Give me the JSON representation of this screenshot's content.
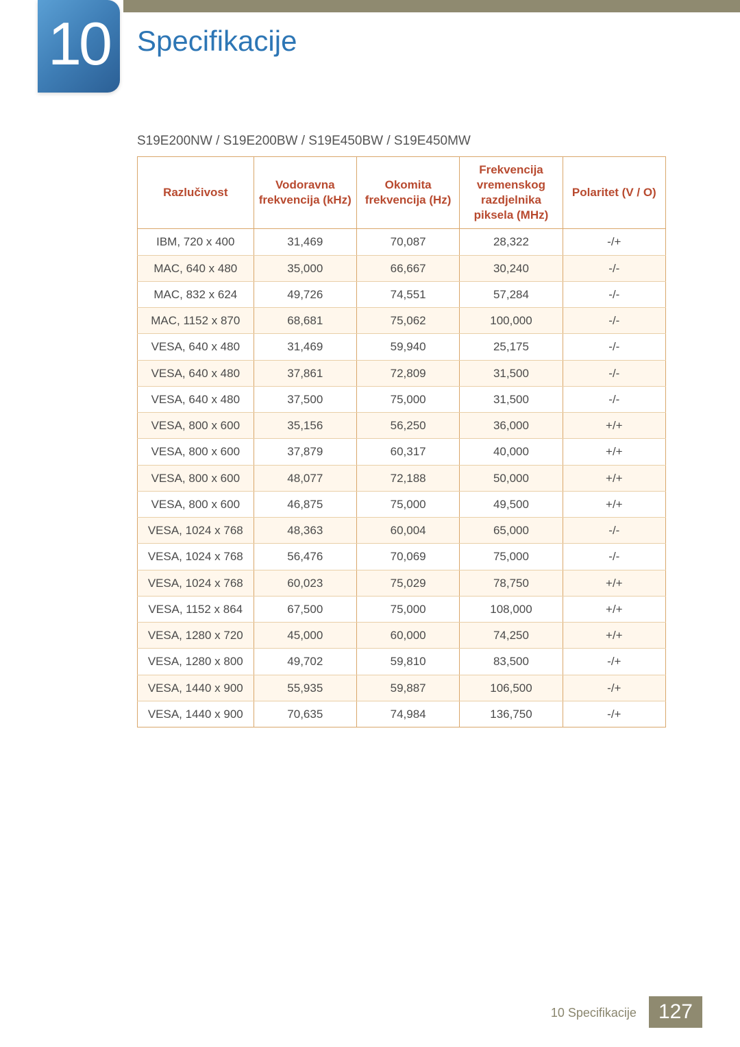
{
  "chapter": {
    "number": "10",
    "title": "Specifikacije"
  },
  "model_line": "S19E200NW / S19E200BW / S19E450BW / S19E450MW",
  "footer": {
    "label": "10 Specifikacije",
    "page": "127"
  },
  "table": {
    "columns": [
      "Razlučivost",
      "Vodoravna frekvencija (kHz)",
      "Okomita frekvencija (Hz)",
      "Frekvencija vremenskog razdjelnika piksela (MHz)",
      "Polaritet (V / O)"
    ],
    "rows": [
      {
        "hl": false,
        "c": [
          "IBM, 720 x 400",
          "31,469",
          "70,087",
          "28,322",
          "-/+"
        ]
      },
      {
        "hl": true,
        "c": [
          "MAC, 640 x 480",
          "35,000",
          "66,667",
          "30,240",
          "-/-"
        ]
      },
      {
        "hl": false,
        "c": [
          "MAC, 832 x 624",
          "49,726",
          "74,551",
          "57,284",
          "-/-"
        ]
      },
      {
        "hl": true,
        "c": [
          "MAC, 1152 x 870",
          "68,681",
          "75,062",
          "100,000",
          "-/-"
        ]
      },
      {
        "hl": false,
        "c": [
          "VESA, 640 x 480",
          "31,469",
          "59,940",
          "25,175",
          "-/-"
        ]
      },
      {
        "hl": true,
        "c": [
          "VESA, 640 x 480",
          "37,861",
          "72,809",
          "31,500",
          "-/-"
        ]
      },
      {
        "hl": false,
        "c": [
          "VESA, 640 x 480",
          "37,500",
          "75,000",
          "31,500",
          "-/-"
        ]
      },
      {
        "hl": true,
        "c": [
          "VESA, 800 x 600",
          "35,156",
          "56,250",
          "36,000",
          "+/+"
        ]
      },
      {
        "hl": false,
        "c": [
          "VESA, 800 x 600",
          "37,879",
          "60,317",
          "40,000",
          "+/+"
        ]
      },
      {
        "hl": true,
        "c": [
          "VESA, 800 x 600",
          "48,077",
          "72,188",
          "50,000",
          "+/+"
        ]
      },
      {
        "hl": false,
        "c": [
          "VESA, 800 x 600",
          "46,875",
          "75,000",
          "49,500",
          "+/+"
        ]
      },
      {
        "hl": true,
        "c": [
          "VESA, 1024 x 768",
          "48,363",
          "60,004",
          "65,000",
          "-/-"
        ]
      },
      {
        "hl": false,
        "c": [
          "VESA, 1024 x 768",
          "56,476",
          "70,069",
          "75,000",
          "-/-"
        ]
      },
      {
        "hl": true,
        "c": [
          "VESA, 1024 x 768",
          "60,023",
          "75,029",
          "78,750",
          "+/+"
        ]
      },
      {
        "hl": false,
        "c": [
          "VESA, 1152 x 864",
          "67,500",
          "75,000",
          "108,000",
          "+/+"
        ]
      },
      {
        "hl": true,
        "c": [
          "VESA, 1280 x 720",
          "45,000",
          "60,000",
          "74,250",
          "+/+"
        ]
      },
      {
        "hl": false,
        "c": [
          "VESA, 1280 x 800",
          "49,702",
          "59,810",
          "83,500",
          "-/+"
        ]
      },
      {
        "hl": true,
        "c": [
          "VESA, 1440 x 900",
          "55,935",
          "59,887",
          "106,500",
          "-/+"
        ]
      },
      {
        "hl": false,
        "c": [
          "VESA, 1440 x 900",
          "70,635",
          "74,984",
          "136,750",
          "-/+"
        ]
      }
    ]
  }
}
